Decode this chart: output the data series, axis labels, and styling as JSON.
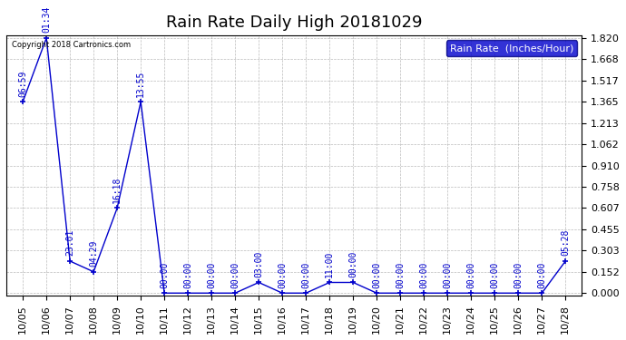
{
  "title": "Rain Rate Daily High 20181029",
  "ylabel": "Rain Rate  (Inches/Hour)",
  "copyright_text": "Copyright 2018 Cartronics.com",
  "background_color": "#ffffff",
  "plot_background_color": "#ffffff",
  "grid_color": "#aaaaaa",
  "line_color": "#0000cc",
  "marker_color": "#0000cc",
  "legend_bg_color": "#0000cc",
  "legend_text_color": "#ffffff",
  "ylim": [
    0.0,
    1.82
  ],
  "yticks": [
    0.0,
    0.152,
    0.303,
    0.455,
    0.607,
    0.758,
    0.91,
    1.062,
    1.213,
    1.365,
    1.517,
    1.668,
    1.82
  ],
  "x_indices": [
    0,
    1,
    2,
    3,
    4,
    5,
    6,
    7,
    8,
    9,
    10,
    11,
    12,
    13,
    14,
    15,
    16,
    17,
    18,
    19,
    20,
    21,
    22,
    23
  ],
  "x_labels": [
    "10/05",
    "10/06",
    "10/07",
    "10/08",
    "10/09",
    "10/10",
    "10/11",
    "10/12",
    "10/13",
    "10/14",
    "10/15",
    "10/16",
    "10/17",
    "10/18",
    "10/19",
    "10/20",
    "10/21",
    "10/22",
    "10/23",
    "10/24",
    "10/25",
    "10/26",
    "10/27",
    "10/28"
  ],
  "y_values": [
    1.365,
    1.82,
    0.228,
    0.152,
    0.607,
    1.365,
    0.0,
    0.0,
    0.0,
    0.0,
    0.076,
    0.0,
    0.0,
    0.076,
    0.076,
    0.0,
    0.0,
    0.0,
    0.0,
    0.0,
    0.0,
    0.0,
    0.0,
    0.228
  ],
  "point_labels": [
    "06:59",
    "01:34",
    "23:01",
    "04:29",
    "16:18",
    "13:55",
    "00:00",
    "00:00",
    "00:00",
    "00:00",
    "03:00",
    "00:00",
    "00:00",
    "11:00",
    "00:00",
    "00:00",
    "00:00",
    "00:00",
    "00:00",
    "00:00",
    "00:00",
    "00:00",
    "00:00",
    "05:28"
  ],
  "title_fontsize": 13,
  "tick_fontsize": 8,
  "annotation_fontsize": 7,
  "legend_fontsize": 8
}
